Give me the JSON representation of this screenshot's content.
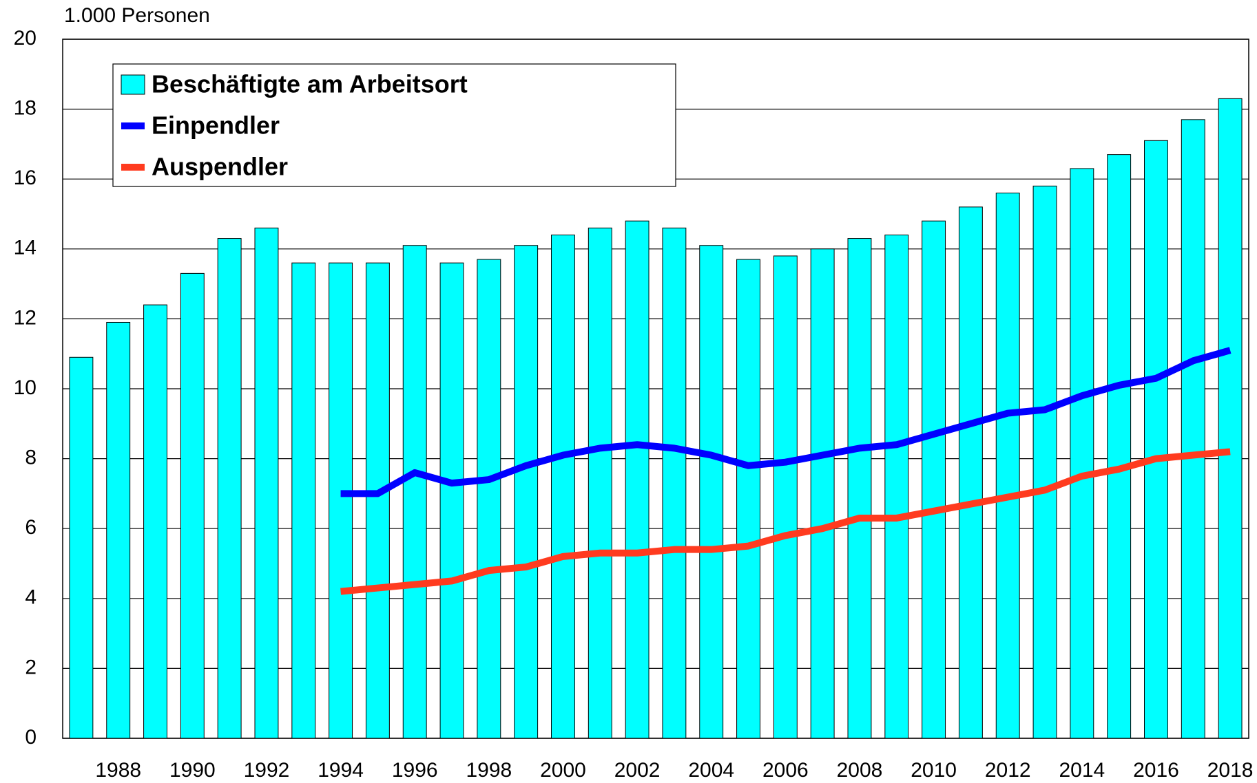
{
  "chart_data": {
    "type": "bar",
    "y_label": "1.000 Personen",
    "categories": [
      null,
      "1988",
      null,
      "1990",
      null,
      "1992",
      null,
      "1994",
      null,
      "1996",
      null,
      "1998",
      null,
      "2000",
      null,
      "2002",
      null,
      "2004",
      null,
      "2006",
      null,
      "2008",
      null,
      "2010",
      null,
      "2012",
      null,
      "2014",
      null,
      "2016",
      null,
      "2018"
    ],
    "series": [
      {
        "name": "Beschäftigte am Arbeitsort",
        "type": "bar",
        "color": "#00ffff",
        "values": [
          10.9,
          11.9,
          12.4,
          13.3,
          14.3,
          14.6,
          13.6,
          13.6,
          13.6,
          14.1,
          13.6,
          13.7,
          14.1,
          14.4,
          14.6,
          14.8,
          14.6,
          14.1,
          13.7,
          13.8,
          14.0,
          14.3,
          14.4,
          14.8,
          15.2,
          15.6,
          15.8,
          16.3,
          16.7,
          17.1,
          17.7,
          18.3
        ]
      },
      {
        "name": "Einpendler",
        "type": "line",
        "color": "#0000ff",
        "values": [
          null,
          null,
          null,
          null,
          null,
          null,
          null,
          7.0,
          7.0,
          7.6,
          7.3,
          7.4,
          7.8,
          8.1,
          8.3,
          8.4,
          8.3,
          8.1,
          7.8,
          7.9,
          8.1,
          8.3,
          8.4,
          8.7,
          9.0,
          9.3,
          9.4,
          9.8,
          10.1,
          10.3,
          10.8,
          11.1
        ]
      },
      {
        "name": "Auspendler",
        "type": "line",
        "color": "#ff3b1f",
        "values": [
          null,
          null,
          null,
          null,
          null,
          null,
          null,
          4.2,
          4.3,
          4.4,
          4.5,
          4.8,
          4.9,
          5.2,
          5.3,
          5.3,
          5.4,
          5.4,
          5.5,
          5.8,
          6.0,
          6.3,
          6.3,
          6.5,
          6.7,
          6.9,
          7.1,
          7.5,
          7.7,
          8.0,
          8.1,
          8.2
        ]
      }
    ],
    "ylim": [
      0,
      20
    ],
    "yticks": [
      0,
      2,
      4,
      6,
      8,
      10,
      12,
      14,
      16,
      18,
      20
    ],
    "grid": true,
    "legend": "upper left"
  }
}
